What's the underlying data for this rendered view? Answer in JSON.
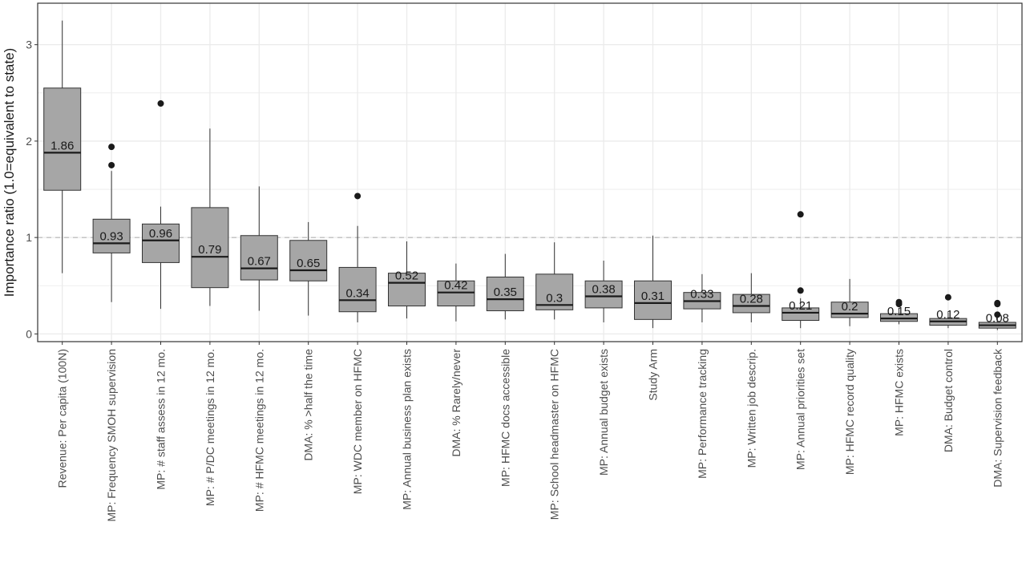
{
  "chart_data": {
    "type": "boxplot",
    "title": "",
    "xlabel": "",
    "ylabel": "Importance ratio (1.0=equivalent to state)",
    "ylim": [
      -0.08,
      3.43
    ],
    "yticks": [
      0,
      1,
      2,
      3
    ],
    "grid": true,
    "reference_line": 1,
    "colors": {
      "box_fill": "#a6a6a6",
      "outline": "#333333",
      "grid": "#ebebeb",
      "reference": "#bfbfbf"
    },
    "categories": [
      "Revenue: Per capita (100N)",
      "MP: Frequency SMOH supervision",
      "MP: # staff assess in 12 mo.",
      "MP: # P/DC meetings in 12 mo.",
      "MP: # HFMC meetings in 12 mo.",
      "DMA: % >half the time",
      "MP: WDC member on HFMC",
      "MP: Annual business plan exists",
      "DMA: % Rarely/never",
      "MP: HFMC docs accessible",
      "MP: School headmaster on HFMC",
      "MP: Annual budget exists",
      "Study Arm",
      "MP: Performance tracking",
      "MP: Written job descrip.",
      "MP: Annual priorities set",
      "MP: HFMC record quality",
      "MP: HFMC exists",
      "DMA: Budget control",
      "DMA: Supervision feedback"
    ],
    "boxes": [
      {
        "lower": 0.63,
        "q1": 1.49,
        "median": 1.88,
        "q3": 2.55,
        "upper": 3.25,
        "outliers": [],
        "label": "1.86"
      },
      {
        "lower": 0.33,
        "q1": 0.84,
        "median": 0.94,
        "q3": 1.19,
        "upper": 1.69,
        "outliers": [
          1.75,
          1.94
        ],
        "label": "0.93"
      },
      {
        "lower": 0.26,
        "q1": 0.74,
        "median": 0.97,
        "q3": 1.14,
        "upper": 1.32,
        "outliers": [
          2.39
        ],
        "label": "0.96"
      },
      {
        "lower": 0.29,
        "q1": 0.48,
        "median": 0.8,
        "q3": 1.31,
        "upper": 2.13,
        "outliers": [],
        "label": "0.79"
      },
      {
        "lower": 0.24,
        "q1": 0.56,
        "median": 0.68,
        "q3": 1.02,
        "upper": 1.53,
        "outliers": [],
        "label": "0.67"
      },
      {
        "lower": 0.19,
        "q1": 0.55,
        "median": 0.66,
        "q3": 0.97,
        "upper": 1.16,
        "outliers": [],
        "label": "0.65"
      },
      {
        "lower": 0.12,
        "q1": 0.23,
        "median": 0.35,
        "q3": 0.69,
        "upper": 1.12,
        "outliers": [
          1.43
        ],
        "label": "0.34"
      },
      {
        "lower": 0.16,
        "q1": 0.29,
        "median": 0.53,
        "q3": 0.63,
        "upper": 0.96,
        "outliers": [],
        "label": "0.52"
      },
      {
        "lower": 0.13,
        "q1": 0.29,
        "median": 0.43,
        "q3": 0.55,
        "upper": 0.73,
        "outliers": [],
        "label": "0.42"
      },
      {
        "lower": 0.15,
        "q1": 0.24,
        "median": 0.36,
        "q3": 0.59,
        "upper": 0.83,
        "outliers": [],
        "label": "0.35"
      },
      {
        "lower": 0.15,
        "q1": 0.25,
        "median": 0.3,
        "q3": 0.62,
        "upper": 0.95,
        "outliers": [],
        "label": "0.3"
      },
      {
        "lower": 0.12,
        "q1": 0.27,
        "median": 0.39,
        "q3": 0.55,
        "upper": 0.76,
        "outliers": [],
        "label": "0.38"
      },
      {
        "lower": 0.06,
        "q1": 0.15,
        "median": 0.32,
        "q3": 0.55,
        "upper": 1.02,
        "outliers": [],
        "label": "0.31"
      },
      {
        "lower": 0.12,
        "q1": 0.26,
        "median": 0.34,
        "q3": 0.43,
        "upper": 0.62,
        "outliers": [],
        "label": "0.33"
      },
      {
        "lower": 0.12,
        "q1": 0.22,
        "median": 0.29,
        "q3": 0.41,
        "upper": 0.63,
        "outliers": [],
        "label": "0.28"
      },
      {
        "lower": 0.06,
        "q1": 0.14,
        "median": 0.22,
        "q3": 0.27,
        "upper": 0.37,
        "outliers": [
          0.45,
          1.24
        ],
        "label": "0.21"
      },
      {
        "lower": 0.08,
        "q1": 0.17,
        "median": 0.21,
        "q3": 0.33,
        "upper": 0.57,
        "outliers": [],
        "label": "0.2"
      },
      {
        "lower": 0.1,
        "q1": 0.13,
        "median": 0.16,
        "q3": 0.21,
        "upper": 0.27,
        "outliers": [
          0.31,
          0.33
        ],
        "label": "0.15"
      },
      {
        "lower": 0.06,
        "q1": 0.09,
        "median": 0.13,
        "q3": 0.16,
        "upper": 0.22,
        "outliers": [
          0.38
        ],
        "label": "0.12"
      },
      {
        "lower": 0.04,
        "q1": 0.06,
        "median": 0.09,
        "q3": 0.12,
        "upper": 0.17,
        "outliers": [
          0.2,
          0.31,
          0.32
        ],
        "label": "0.08"
      }
    ]
  }
}
